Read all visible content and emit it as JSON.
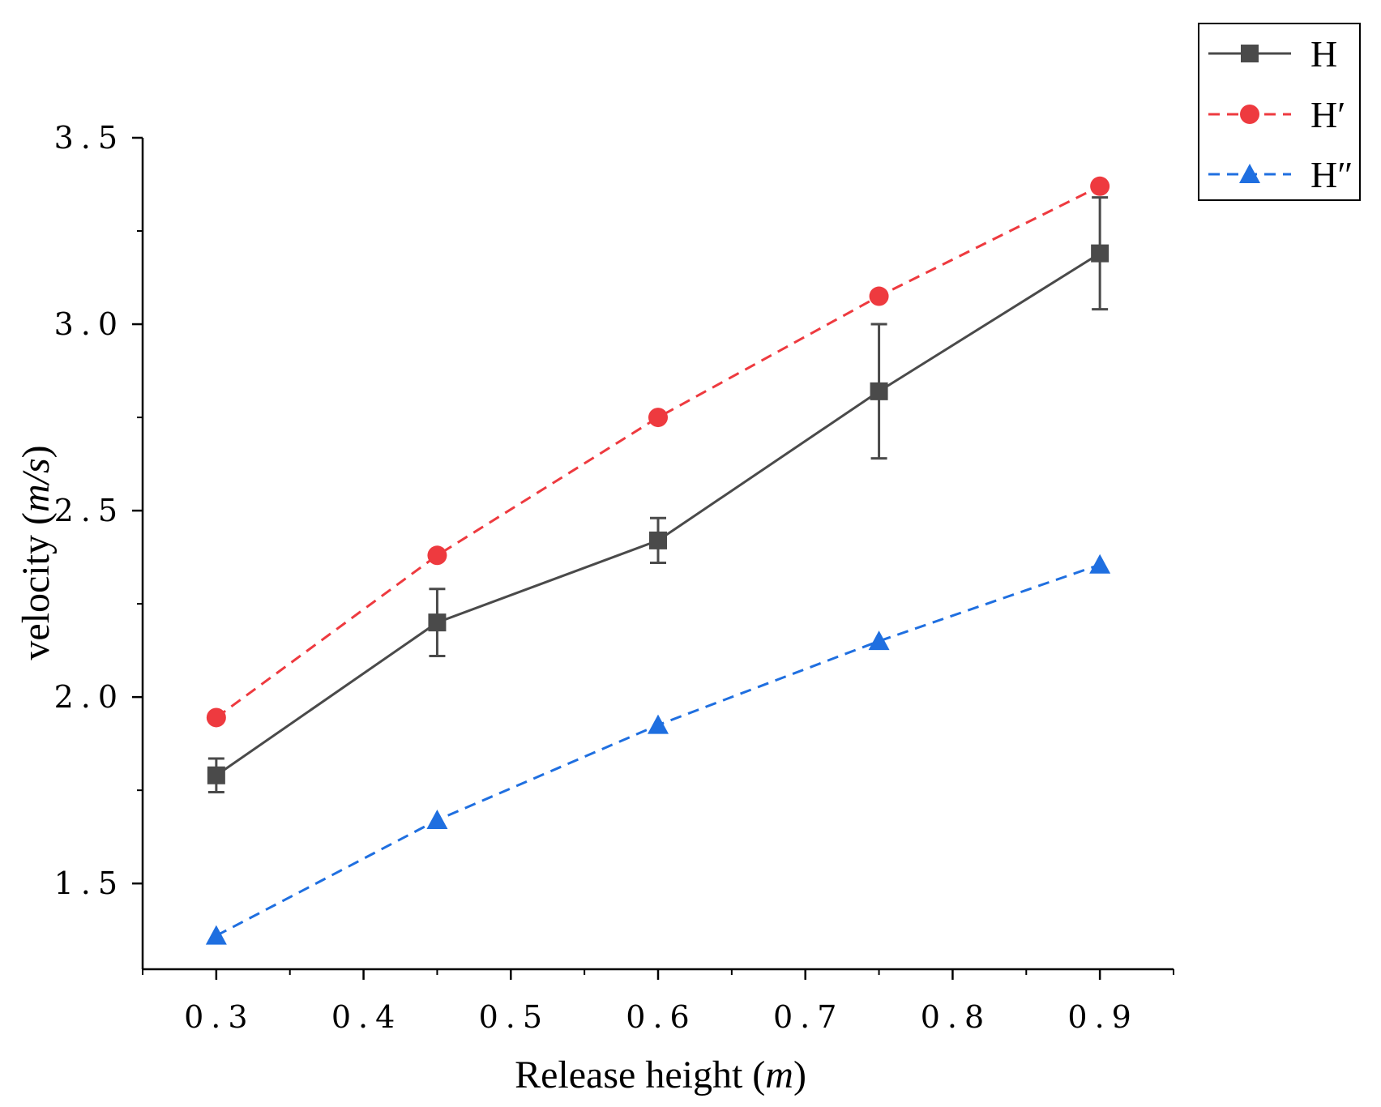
{
  "chart_data": {
    "type": "line",
    "title": "",
    "xlabel": {
      "prefix": "Release height (",
      "unit": "m",
      "suffix": ")"
    },
    "ylabel": {
      "prefix": "velocity (",
      "unit": "m/s",
      "suffix": ")"
    },
    "xlim": [
      0.25,
      0.95
    ],
    "ylim": [
      1.27,
      3.5
    ],
    "x_major_ticks": [
      0.3,
      0.4,
      0.5,
      0.6,
      0.7,
      0.8,
      0.9
    ],
    "x_tick_labels": [
      "0.3",
      "0.4",
      "0.5",
      "0.6",
      "0.7",
      "0.8",
      "0.9"
    ],
    "y_major_ticks": [
      1.5,
      2.0,
      2.5,
      3.0,
      3.5
    ],
    "y_tick_labels": [
      "1.5",
      "2.0",
      "2.5",
      "3.0",
      "3.5"
    ],
    "grid": false,
    "legend_position": "top-right",
    "x": [
      0.3,
      0.45,
      0.6,
      0.75,
      0.9
    ],
    "series": [
      {
        "name": "H",
        "values": [
          1.79,
          2.2,
          2.42,
          2.82,
          3.19
        ],
        "error": [
          0.045,
          0.09,
          0.06,
          0.18,
          0.15
        ],
        "color": "#4a4a4a",
        "marker": "square",
        "line": "solid"
      },
      {
        "name": "H′",
        "values": [
          1.945,
          2.38,
          2.75,
          3.075,
          3.37
        ],
        "color": "#ee3a3f",
        "marker": "circle",
        "line": "dashed"
      },
      {
        "name": "H″",
        "values": [
          1.36,
          1.67,
          1.925,
          2.15,
          2.355
        ],
        "color": "#1f6fe0",
        "marker": "triangle",
        "line": "dashed"
      }
    ]
  }
}
